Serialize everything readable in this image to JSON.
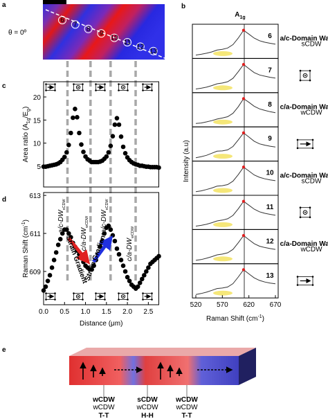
{
  "panel_labels": [
    "a",
    "b",
    "c",
    "d",
    "e"
  ],
  "panel_a": {
    "angle_label": "θ = 0º",
    "positions": [
      "6",
      "7",
      "8",
      "9",
      "10",
      "11",
      "12",
      "13"
    ]
  },
  "chart_data": [
    {
      "type": "scatter",
      "y_label": [
        "Area ratio (A",
        "1g",
        "/E",
        "g",
        ")"
      ],
      "color": "#000000",
      "xlim": [
        0,
        2.75
      ],
      "ylim": [
        0.5,
        23.3
      ],
      "yticks": [
        5,
        10,
        15,
        20
      ],
      "x": [
        0,
        0.05,
        0.1,
        0.15,
        0.2,
        0.25,
        0.3,
        0.35,
        0.4,
        0.45,
        0.5,
        0.55,
        0.6,
        0.65,
        0.7,
        0.75,
        0.8,
        0.85,
        0.9,
        0.95,
        1,
        1.05,
        1.1,
        1.15,
        1.2,
        1.25,
        1.3,
        1.35,
        1.4,
        1.45,
        1.5,
        1.55,
        1.6,
        1.65,
        1.7,
        1.75,
        1.8,
        1.85,
        1.9,
        1.95,
        2,
        2.05,
        2.1,
        2.15,
        2.2,
        2.25,
        2.3,
        2.35,
        2.4,
        2.45,
        2.5,
        2.55,
        2.6,
        2.65,
        2.7,
        2.75
      ],
      "values": [
        4.9,
        4.9,
        5.0,
        5.1,
        5.2,
        5.3,
        5.4,
        5.6,
        5.9,
        6.4,
        7.0,
        8.0,
        9.6,
        12.2,
        15.5,
        17.4,
        15.6,
        12.2,
        9.7,
        8.1,
        7.1,
        6.5,
        6.2,
        5.9,
        5.9,
        5.9,
        5.9,
        6.0,
        6.2,
        6.6,
        7.1,
        8.0,
        9.4,
        11.5,
        14.0,
        15.4,
        14.0,
        11.4,
        9.2,
        7.8,
        6.9,
        6.3,
        5.9,
        5.6,
        5.4,
        5.3,
        5.1,
        5.1,
        5.0,
        4.9,
        4.9,
        4.8,
        4.8,
        4.8,
        4.8,
        4.7
      ]
    },
    {
      "type": "scatter",
      "x_label": "Distance (μm)",
      "y_label": [
        "Raman Shift (cm",
        "-1",
        ")"
      ],
      "color": "#000000",
      "xlim": [
        0,
        2.75
      ],
      "ylim": [
        607.25,
        613.15
      ],
      "xticks": [
        {
          "value": 0,
          "label": "0.0"
        },
        {
          "value": 0.5,
          "label": "0.5"
        },
        {
          "value": 1,
          "label": "1.0"
        },
        {
          "value": 1.5,
          "label": "1.5"
        },
        {
          "value": 2,
          "label": "2.0"
        },
        {
          "value": 2.5,
          "label": "2.5"
        }
      ],
      "yticks": [
        609,
        611,
        613
      ],
      "x": [
        0,
        0.05,
        0.1,
        0.15,
        0.2,
        0.25,
        0.3,
        0.35,
        0.4,
        0.45,
        0.5,
        0.55,
        0.6,
        0.65,
        0.7,
        0.75,
        0.8,
        0.85,
        0.9,
        0.95,
        1,
        1.05,
        1.1,
        1.15,
        1.2,
        1.25,
        1.3,
        1.35,
        1.4,
        1.45,
        1.5,
        1.55,
        1.6,
        1.65,
        1.7,
        1.75,
        1.8,
        1.85,
        1.9,
        1.95,
        2,
        2.05,
        2.1,
        2.15,
        2.2,
        2.25,
        2.3,
        2.35,
        2.4,
        2.45,
        2.5,
        2.55,
        2.6,
        2.65,
        2.7,
        2.75
      ],
      "values": [
        608.0,
        608.2,
        608.5,
        608.8,
        609.2,
        609.6,
        610.0,
        610.4,
        610.7,
        611.0,
        611.2,
        611.2,
        611.0,
        610.8,
        610.5,
        610.3,
        610.1,
        609.9,
        609.7,
        609.5,
        609.3,
        609.2,
        609.1,
        609.1,
        609.3,
        609.6,
        609.9,
        610.3,
        610.6,
        611.0,
        611.3,
        611.4,
        611.2,
        610.9,
        610.6,
        610.2,
        609.9,
        609.6,
        609.3,
        609.0,
        608.7,
        608.5,
        608.3,
        608.2,
        608.1,
        608.2,
        608.4,
        608.6,
        608.8,
        609.0,
        609.2,
        609.4,
        609.5,
        609.6,
        609.7,
        609.8
      ],
      "annotations": [
        [
          "a/c-DW",
          "sCDW"
        ],
        [
          "c/a-DW",
          "wCDW"
        ],
        [
          "a/c-DW",
          "sCDW"
        ],
        [
          "c/a-DW",
          "wCDW"
        ]
      ],
      "gradient_labels": [
        "Strain Gradient",
        "Strain Gradient"
      ]
    },
    {
      "type": "line",
      "title": [
        "A",
        "1g"
      ],
      "x_label": [
        "Raman Shift (cm",
        "-1",
        ")"
      ],
      "y_label": "Intensity (a.u)",
      "xlim": [
        513.5,
        675.2
      ],
      "ylim": [
        0,
        1.15
      ],
      "xticks": [
        520,
        570,
        620,
        670
      ],
      "x": [
        520,
        530,
        540,
        550,
        560,
        570,
        580,
        590,
        600,
        610,
        620,
        630,
        640,
        650,
        660,
        670
      ],
      "series": [
        {
          "name": "6",
          "color": "#333333",
          "values": [
            0.05,
            0.08,
            0.12,
            0.17,
            0.24,
            0.27,
            0.32,
            0.45,
            0.7,
            1.0,
            0.85,
            0.7,
            0.6,
            0.54,
            0.5,
            0.47
          ]
        },
        {
          "name": "7",
          "color": "#333333",
          "values": [
            0.06,
            0.09,
            0.13,
            0.19,
            0.26,
            0.29,
            0.34,
            0.47,
            0.72,
            1.0,
            0.84,
            0.69,
            0.6,
            0.55,
            0.51,
            0.48
          ]
        },
        {
          "name": "8",
          "color": "#333333",
          "values": [
            0.05,
            0.07,
            0.11,
            0.16,
            0.22,
            0.26,
            0.31,
            0.44,
            0.69,
            1.0,
            0.86,
            0.71,
            0.61,
            0.55,
            0.5,
            0.46
          ]
        },
        {
          "name": "9",
          "color": "#333333",
          "values": [
            0.05,
            0.09,
            0.14,
            0.22,
            0.3,
            0.31,
            0.35,
            0.48,
            0.73,
            1.0,
            0.84,
            0.68,
            0.58,
            0.53,
            0.49,
            0.46
          ]
        },
        {
          "name": "10",
          "color": "#333333",
          "values": [
            0.06,
            0.09,
            0.14,
            0.2,
            0.27,
            0.29,
            0.33,
            0.46,
            0.71,
            1.0,
            0.85,
            0.7,
            0.61,
            0.55,
            0.51,
            0.48
          ]
        },
        {
          "name": "11",
          "color": "#333333",
          "values": [
            0.05,
            0.08,
            0.12,
            0.18,
            0.25,
            0.28,
            0.33,
            0.46,
            0.71,
            1.0,
            0.85,
            0.7,
            0.6,
            0.54,
            0.5,
            0.47
          ]
        },
        {
          "name": "12",
          "color": "#333333",
          "values": [
            0.05,
            0.08,
            0.13,
            0.19,
            0.26,
            0.29,
            0.34,
            0.47,
            0.72,
            1.0,
            0.84,
            0.69,
            0.59,
            0.54,
            0.5,
            0.47
          ]
        },
        {
          "name": "13",
          "color": "#333333",
          "values": [
            0.05,
            0.09,
            0.14,
            0.21,
            0.28,
            0.3,
            0.34,
            0.47,
            0.72,
            1.0,
            0.84,
            0.69,
            0.59,
            0.53,
            0.49,
            0.46
          ]
        }
      ],
      "peak_color": "#e02020",
      "wall_labels": [
        [
          "a/c-Domain Wall",
          "sCDW"
        ],
        null,
        [
          "c/a-Domain Wall",
          "wCDW"
        ],
        null,
        [
          "a/c-Domain Wall",
          "sCDW"
        ],
        null,
        [
          "c/a-Domain Wall",
          "wCDW"
        ],
        null
      ]
    }
  ],
  "panel_e": {
    "walls": [
      {
        "upper": "wCDW",
        "lower": "wCDW",
        "name": "T-T"
      },
      {
        "upper": "sCDW",
        "lower": "wCDW",
        "name": "H-H"
      },
      {
        "upper": "wCDW",
        "lower": "wCDW",
        "name": "T-T"
      }
    ]
  }
}
